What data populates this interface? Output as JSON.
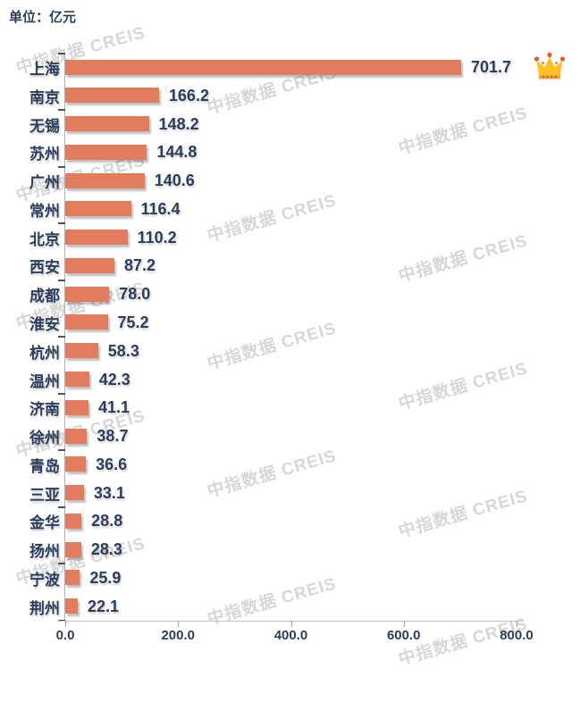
{
  "title": "单位：亿元",
  "watermark": {
    "text": "中指数据 CREIS"
  },
  "chart_data": {
    "type": "bar",
    "orientation": "horizontal",
    "title": "单位：亿元",
    "xlabel": "",
    "ylabel": "",
    "xlim": [
      0,
      800
    ],
    "x_tick_labels": [
      "0.0",
      "200.0",
      "400.0",
      "600.0",
      "800.0"
    ],
    "x_tick_values": [
      0,
      200,
      400,
      600,
      800
    ],
    "grid": false,
    "value_decimals": 1,
    "categories": [
      "上海",
      "南京",
      "无锡",
      "苏州",
      "广州",
      "常州",
      "北京",
      "西安",
      "成都",
      "淮安",
      "杭州",
      "温州",
      "济南",
      "徐州",
      "青岛",
      "三亚",
      "金华",
      "扬州",
      "宁波",
      "荆州"
    ],
    "values": [
      701.7,
      166.2,
      148.2,
      144.8,
      140.6,
      116.4,
      110.2,
      87.2,
      78.0,
      75.2,
      58.3,
      42.3,
      41.1,
      38.7,
      36.6,
      33.1,
      28.8,
      28.3,
      25.9,
      22.1
    ],
    "annotations": [
      {
        "type": "crown-icon",
        "category": "上海"
      }
    ],
    "colors": {
      "bar": "#e17c5f",
      "label": "#2c3e5c",
      "axis": "#aab2bf",
      "watermark": "#d7d7d7",
      "crown_gold": "#ffc125",
      "crown_dots": "#f4511e"
    }
  }
}
